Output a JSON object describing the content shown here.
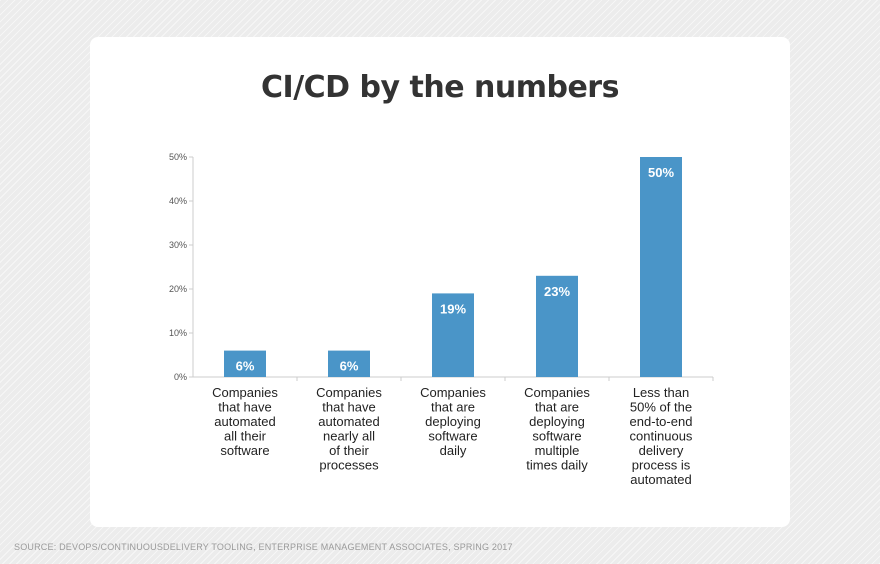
{
  "title": "CI/CD by the numbers",
  "source": "SOURCE: DEVOPS/CONTINUOUSDELIVERY TOOLING, ENTERPRISE MANAGEMENT ASSOCIATES, SPRING 2017",
  "colors": {
    "bar": "#4a95c8",
    "card": "#ffffff",
    "title": "#333333"
  },
  "chart_data": {
    "type": "bar",
    "title": "CI/CD by the numbers",
    "xlabel": "",
    "ylabel": "",
    "ylim": [
      0,
      50
    ],
    "y_ticks": [
      0,
      10,
      20,
      30,
      40,
      50
    ],
    "y_tick_labels": [
      "0%",
      "10%",
      "20%",
      "30%",
      "40%",
      "50%"
    ],
    "categories": [
      [
        "Companies",
        "that have",
        "automated",
        "all their",
        "software"
      ],
      [
        "Companies",
        "that have",
        "automated",
        "nearly all",
        "of their",
        "processes"
      ],
      [
        "Companies",
        "that are",
        "deploying",
        "software",
        "daily"
      ],
      [
        "Companies",
        "that are",
        "deploying",
        "software",
        "multiple",
        "times daily"
      ],
      [
        "Less than",
        "50% of the",
        "end-to-end",
        "continuous",
        "delivery",
        "process is",
        "automated"
      ]
    ],
    "values": [
      6,
      6,
      19,
      23,
      50
    ],
    "value_labels": [
      "6%",
      "6%",
      "19%",
      "23%",
      "50%"
    ],
    "grid": false
  }
}
